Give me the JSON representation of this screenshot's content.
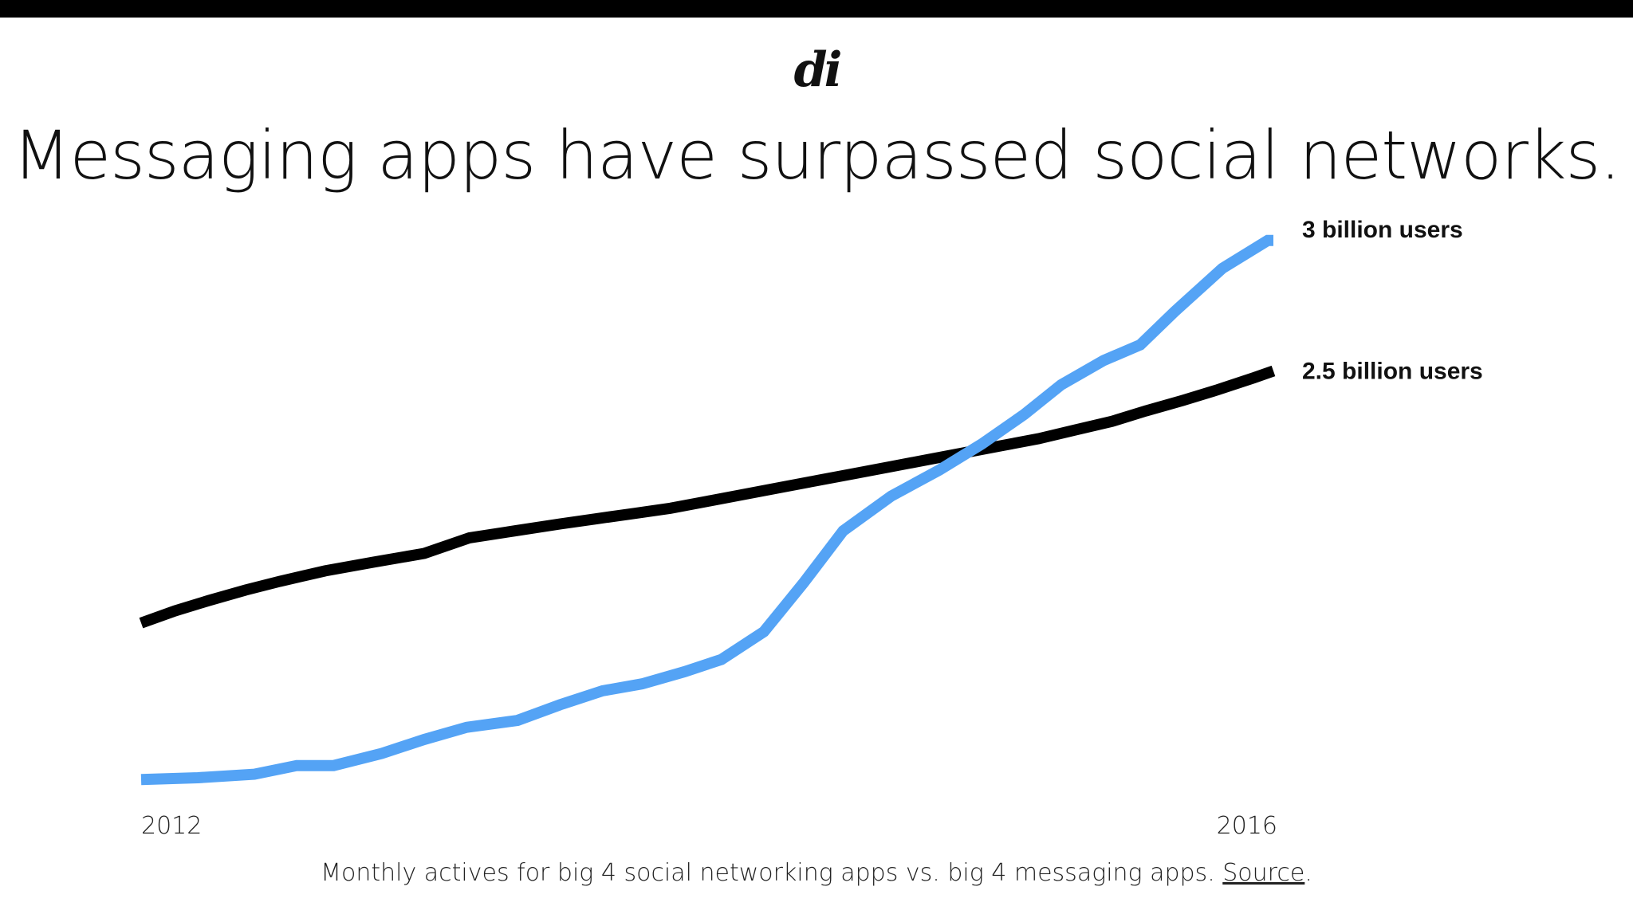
{
  "header": {
    "logo_text": "di",
    "title": "Messaging apps have surpassed social networks."
  },
  "caption": {
    "text": "Monthly actives for big 4 social networking apps vs. big 4 messaging apps. ",
    "link": "Source",
    "end": "."
  },
  "colors": {
    "social": "#000000",
    "messaging": "#54a3f5"
  },
  "chart_data": {
    "type": "line",
    "title": "Messaging apps have surpassed social networks.",
    "x_tick_labels": [
      "2012",
      "2016"
    ],
    "xlim": [
      2012,
      2016
    ],
    "ylim": [
      0,
      3.3
    ],
    "grid": false,
    "legend": "none",
    "series": [
      {
        "id": "social",
        "end_label": "2.5 billion users",
        "x": [
          2012.0,
          2012.12,
          2012.24,
          2012.37,
          2012.49,
          2012.65,
          2012.82,
          2013.0,
          2013.16,
          2013.32,
          2013.48,
          2013.61,
          2013.74,
          2013.87,
          2014.0,
          2014.13,
          2014.26,
          2014.39,
          2014.52,
          2014.65,
          2014.78,
          2014.91,
          2015.04,
          2015.17,
          2015.3,
          2015.43,
          2015.55,
          2015.68,
          2015.8,
          2015.93,
          2016.0
        ],
        "y": [
          1.0,
          1.07,
          1.13,
          1.19,
          1.24,
          1.3,
          1.35,
          1.4,
          1.49,
          1.53,
          1.57,
          1.6,
          1.63,
          1.66,
          1.7,
          1.74,
          1.78,
          1.82,
          1.86,
          1.9,
          1.94,
          1.98,
          2.02,
          2.06,
          2.11,
          2.16,
          2.22,
          2.28,
          2.34,
          2.41,
          2.45
        ]
      },
      {
        "id": "messaging",
        "end_label": "3 billion users",
        "x": [
          2012.0,
          2012.2,
          2012.4,
          2012.55,
          2012.68,
          2012.85,
          2013.0,
          2013.15,
          2013.33,
          2013.48,
          2013.63,
          2013.77,
          2013.92,
          2014.05,
          2014.2,
          2014.34,
          2014.48,
          2014.65,
          2014.82,
          2014.97,
          2015.12,
          2015.25,
          2015.4,
          2015.53,
          2015.65,
          2015.82,
          2015.98,
          2016.0
        ],
        "y": [
          0.1,
          0.11,
          0.13,
          0.18,
          0.18,
          0.25,
          0.33,
          0.4,
          0.44,
          0.53,
          0.61,
          0.65,
          0.72,
          0.79,
          0.95,
          1.23,
          1.53,
          1.73,
          1.88,
          2.03,
          2.2,
          2.37,
          2.51,
          2.6,
          2.79,
          3.04,
          3.2,
          3.2
        ]
      }
    ]
  }
}
